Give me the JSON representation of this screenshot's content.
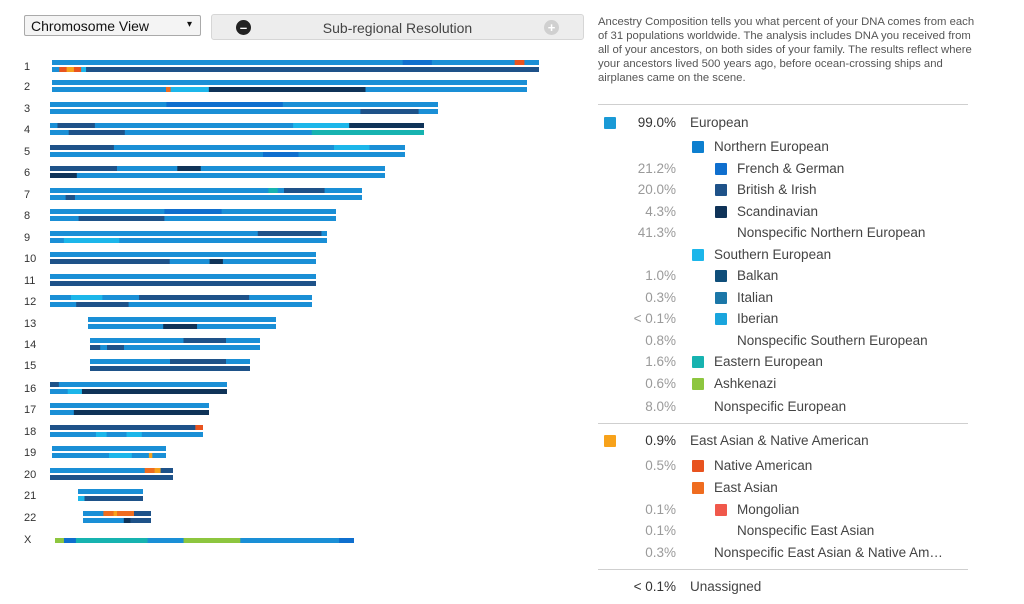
{
  "controls": {
    "view_select": "Chromosome View",
    "view_arrow": "▾",
    "resolution_label": "Sub-regional Resolution",
    "minus": "–",
    "plus": "+"
  },
  "chromosome_labels": [
    "1",
    "2",
    "3",
    "4",
    "5",
    "6",
    "7",
    "8",
    "9",
    "10",
    "11",
    "12",
    "13",
    "14",
    "15",
    "16",
    "17",
    "18",
    "19",
    "20",
    "21",
    "22",
    "X"
  ],
  "intro_text": "Ancestry Composition tells you what percent of your DNA comes from each of 31 populations worldwide. The analysis includes DNA you received from all of your ancestors, on both sides of your family. The results reflect where your ancestors lived 500 years ago, before ocean-crossing ships and airplanes came on the scene.",
  "composition": [
    {
      "pct": "99.0%",
      "name": "European",
      "level": 0,
      "color": "#1a9ad6",
      "dark": true
    },
    {
      "pct": "",
      "name": "Northern European",
      "level": 1,
      "color": "#0d7fcf"
    },
    {
      "pct": "21.2%",
      "name": "French & German",
      "level": 2,
      "color": "#0f6fce"
    },
    {
      "pct": "20.0%",
      "name": "British & Irish",
      "level": 2,
      "color": "#1e5289"
    },
    {
      "pct": "4.3%",
      "name": "Scandinavian",
      "level": 2,
      "color": "#0f3358"
    },
    {
      "pct": "41.3%",
      "name": "Nonspecific Northern European",
      "level": 2,
      "color": ""
    },
    {
      "pct": "",
      "name": "Southern European",
      "level": 1,
      "color": "#1cb6ea"
    },
    {
      "pct": "1.0%",
      "name": "Balkan",
      "level": 2,
      "color": "#0f4e7a"
    },
    {
      "pct": "0.3%",
      "name": "Italian",
      "level": 2,
      "color": "#1b77a8"
    },
    {
      "pct": "< 0.1%",
      "name": "Iberian",
      "level": 2,
      "color": "#1aa5dd"
    },
    {
      "pct": "0.8%",
      "name": "Nonspecific Southern European",
      "level": 2,
      "color": ""
    },
    {
      "pct": "1.6%",
      "name": "Eastern European",
      "level": 1,
      "color": "#17b3b0"
    },
    {
      "pct": "0.6%",
      "name": "Ashkenazi",
      "level": 1,
      "color": "#8dc63f"
    },
    {
      "pct": "8.0%",
      "name": "Nonspecific European",
      "level": 1,
      "color": ""
    },
    {
      "pct": "0.9%",
      "name": "East Asian & Native American",
      "level": 0,
      "color": "#f7a21b",
      "dark": true
    },
    {
      "pct": "0.5%",
      "name": "Native American",
      "level": 1,
      "color": "#e8531f"
    },
    {
      "pct": "",
      "name": "East Asian",
      "level": 1,
      "color": "#ef6c1f"
    },
    {
      "pct": "0.1%",
      "name": "Mongolian",
      "level": 2,
      "color": "#f0584b"
    },
    {
      "pct": "0.1%",
      "name": "Nonspecific East Asian",
      "level": 2,
      "color": ""
    },
    {
      "pct": "0.3%",
      "name": "Nonspecific East Asian & Native Am…",
      "level": 1,
      "color": ""
    },
    {
      "pct": "< 0.1%",
      "name": "Unassigned",
      "level": 0,
      "color": "",
      "dark": true
    }
  ]
}
